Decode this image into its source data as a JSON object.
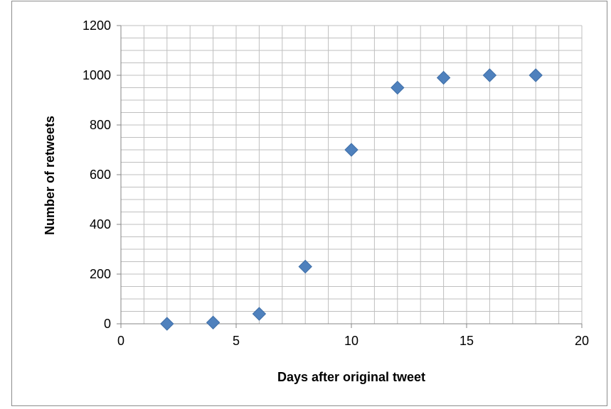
{
  "chart_data": {
    "type": "scatter",
    "title": "",
    "xlabel": "Days after original tweet",
    "ylabel": "Number of retweets",
    "xlim": [
      0,
      20
    ],
    "ylim": [
      0,
      1200
    ],
    "x_ticks": [
      "0",
      "5",
      "10",
      "15",
      "20"
    ],
    "y_ticks": [
      "0",
      "200",
      "400",
      "600",
      "800",
      "1000",
      "1200"
    ],
    "x_tick_values": [
      0,
      5,
      10,
      15,
      20
    ],
    "y_tick_values": [
      0,
      200,
      400,
      600,
      800,
      1000,
      1200
    ],
    "minor_x_step": 1,
    "minor_y_step": 50,
    "grid": true,
    "legend": "none",
    "marker": "diamond",
    "marker_color": "#4F81BD",
    "grid_color": "#bfbfbf",
    "series": [
      {
        "x": [
          2,
          4,
          6,
          8,
          10,
          12,
          14,
          16,
          18
        ],
        "y": [
          0,
          5,
          40,
          230,
          700,
          950,
          990,
          1000,
          1000
        ]
      }
    ]
  }
}
